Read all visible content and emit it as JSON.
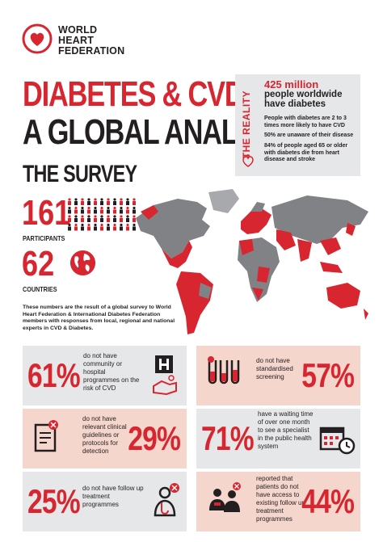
{
  "brand": {
    "line1": "WORLD",
    "line2": "HEART",
    "line3": "FEDERATION"
  },
  "title": {
    "line1": "DIABETES & CVD",
    "line2": "A GLOBAL ANALYSIS",
    "survey": "THE SURVEY"
  },
  "reality": {
    "label": "THE REALITY",
    "headline_number": "425 million",
    "headline_text": "people worldwide have diabetes",
    "facts": [
      "People with diabetes are 2 to 3 times more likely to have CVD",
      "50% are unaware of their disease",
      "84% of people aged 65 or older with diabetes die from heart disease and stroke"
    ]
  },
  "participants": {
    "value": "161",
    "label": "PARTICIPANTS"
  },
  "countries": {
    "value": "62",
    "label": "COUNTRIES"
  },
  "description": "These numbers are the result of a global survey to World Heart Federation & International Diabetes Federation members with responses from local, regional and national experts in CVD & Diabetes.",
  "colors": {
    "accent": "#d7262f",
    "dark": "#231f20",
    "grey_panel": "#e6e7e8",
    "pink_panel": "#f5d6cc",
    "map_grey": "#808285"
  },
  "stats": [
    {
      "pct": "61%",
      "text": "do not have community or hospital programmes on the risk of CVD",
      "icon": "hospital-icon"
    },
    {
      "pct": "57%",
      "text": "do not have standardised screening",
      "icon": "test-tubes-icon"
    },
    {
      "pct": "29%",
      "text": "do not have relevant clinical guidelines or protocols for detection",
      "icon": "document-icon"
    },
    {
      "pct": "71%",
      "text": "have a waiting time of over one month to see a specialist in the public health system",
      "icon": "calendar-clock-icon"
    },
    {
      "pct": "25%",
      "text": "do not have follow up treatment programmes",
      "icon": "doctor-icon"
    },
    {
      "pct": "44%",
      "text": "reported that patients do not have access to existing follow up treatment programmes",
      "icon": "patients-icon"
    }
  ]
}
